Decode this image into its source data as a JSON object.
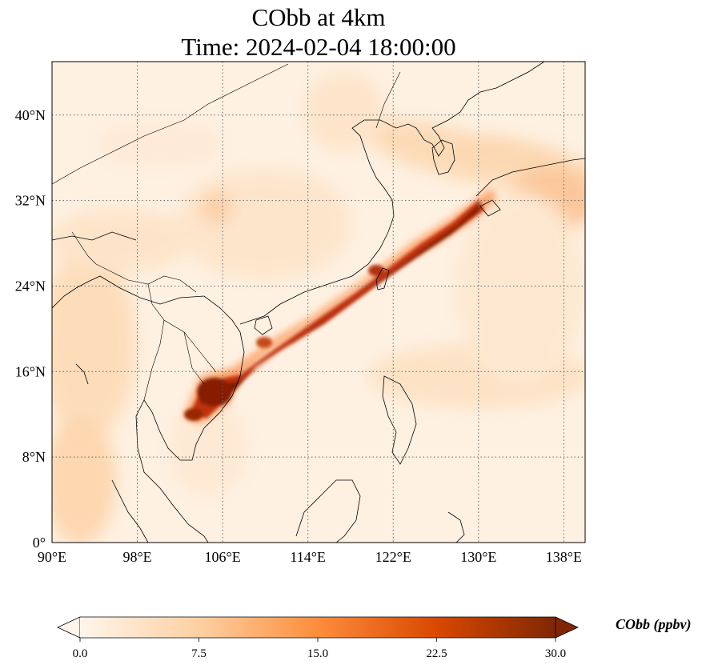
{
  "title": {
    "line1": "CObb at 4km",
    "line2": "Time: 2024-02-04 18:00:00"
  },
  "map": {
    "variable": "CObb",
    "lon_range": [
      90,
      140
    ],
    "lat_range": [
      0,
      45
    ],
    "lon_ticks": [
      "90°E",
      "98°E",
      "106°E",
      "114°E",
      "122°E",
      "130°E",
      "138°E"
    ],
    "lat_ticks": [
      "0°",
      "8°N",
      "16°N",
      "24°N",
      "32°N",
      "40°N"
    ],
    "gridlines": "dotted",
    "coastlines": true,
    "borders": true,
    "plume": "high CObb plume from Indochina across Taiwan toward southern Japan"
  },
  "colorbar": {
    "label": "CObb (ppbv)",
    "min": 0,
    "max": 30,
    "ticks": [
      "0.0",
      "7.5",
      "15.0",
      "22.5",
      "30.0"
    ],
    "colormap": [
      "#fff5eb",
      "#fdd0a2",
      "#fd8d3c",
      "#d94801",
      "#7f2704"
    ],
    "extend": "both"
  }
}
